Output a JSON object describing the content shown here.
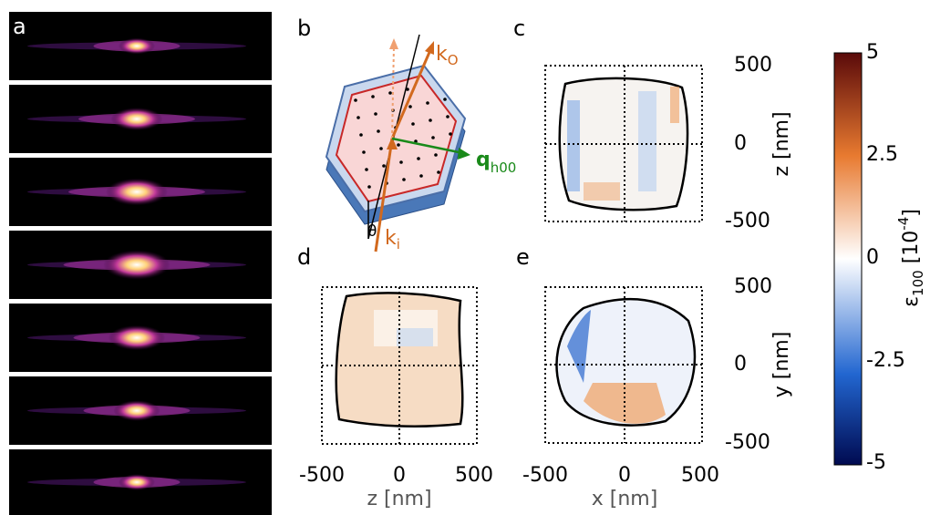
{
  "panel_labels": [
    "a",
    "b",
    "c",
    "d",
    "e"
  ],
  "diagram": {
    "k_out": {
      "symbol": "k",
      "subscript": "O"
    },
    "k_in": {
      "symbol": "k",
      "subscript": "i"
    },
    "q": {
      "symbol": "q",
      "subscript": "h00"
    },
    "angle": "θ"
  },
  "panel_c": {
    "yticks": [
      500,
      0,
      -500
    ],
    "ylabel": "z [nm]"
  },
  "panel_d": {
    "xticks": [
      -500,
      0,
      500
    ],
    "xlabel": "z [nm]"
  },
  "panel_e": {
    "yticks": [
      500,
      0,
      -500
    ],
    "ylabel": "y [nm]",
    "xticks": [
      -500,
      0,
      500
    ],
    "xlabel": "x [nm]"
  },
  "colorbar": {
    "ticks": [
      5,
      2.5,
      0,
      -2.5,
      -5
    ],
    "label": {
      "symbol": "ε",
      "subscript": "100",
      "unit_open": " [10",
      "exponent": "-4",
      "unit_close": "]"
    }
  }
}
